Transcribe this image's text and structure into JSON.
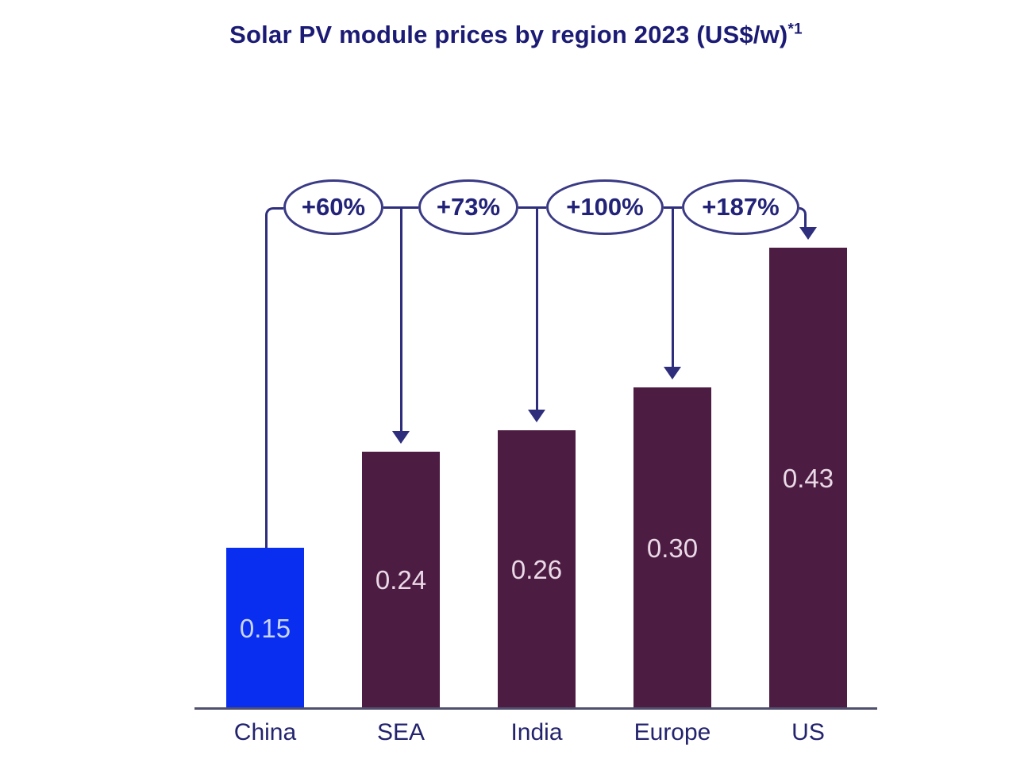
{
  "title": {
    "text": "Solar PV module prices by region 2023 (US$/w)",
    "superscript": "*1"
  },
  "chart_data": {
    "type": "bar",
    "title": "Solar PV module prices by region 2023 (US$/w)*1",
    "unit": "US$/w",
    "year": "2023",
    "categories": [
      "China",
      "SEA",
      "India",
      "Europe",
      "US"
    ],
    "values": [
      0.15,
      0.24,
      0.26,
      0.3,
      0.43
    ],
    "value_labels": [
      "0.15",
      "0.24",
      "0.26",
      "0.30",
      "0.43"
    ],
    "bar_colors": [
      "#0a2ef0",
      "#4d1c42",
      "#4d1c42",
      "#4d1c42",
      "#4d1c42"
    ],
    "value_label_colors": [
      "#c9d5f8",
      "#ead9e7",
      "#ead9e7",
      "#ead9e7",
      "#ead9e7"
    ],
    "annotations": [
      {
        "label": "+60%",
        "from": "China",
        "to": "SEA"
      },
      {
        "label": "+73%",
        "from": "China",
        "to": "India"
      },
      {
        "label": "+100%",
        "from": "China",
        "to": "Europe"
      },
      {
        "label": "+187%",
        "from": "China",
        "to": "US"
      }
    ],
    "ylim": [
      0,
      0.45
    ],
    "grid": false,
    "legend": false,
    "x_axis_visible": true,
    "y_axis_visible": false,
    "axis_color": "#50506e",
    "annotation_line_color": "#2e2e7d",
    "highlight_category": "China"
  }
}
